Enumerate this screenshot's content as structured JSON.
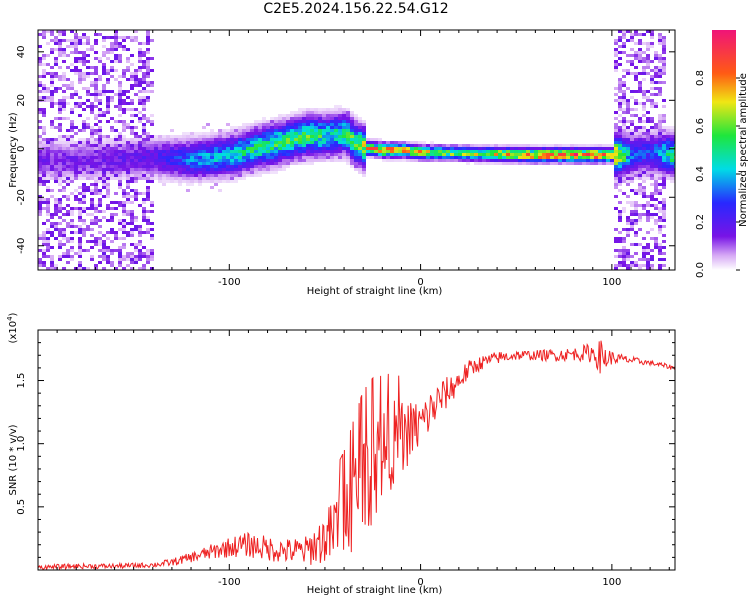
{
  "figure": {
    "title": "C2E5.2024.156.22.54.G12"
  },
  "chart_data": [
    {
      "type": "heatmap",
      "xlabel": "Height of straight line (km)",
      "ylabel": "Frequency (Hz)",
      "xlim": [
        -200,
        133
      ],
      "ylim": [
        -50,
        49
      ],
      "xticks": [
        -100,
        0,
        100
      ],
      "yticks": [
        -40,
        -20,
        0,
        20,
        40
      ],
      "colorbar": {
        "label": "Normalized spectral amplitude",
        "range": [
          0.0,
          1.0
        ],
        "ticks": [
          "0.0",
          "0.2",
          "0.4",
          "0.6",
          "0.8"
        ],
        "colormap": "rainbow (white-violet-blue-cyan-green-yellow-red-pink)"
      },
      "ridge": {
        "description": "dominant frequency ridge vs height",
        "x": [
          -200,
          -170,
          -140,
          -120,
          -100,
          -80,
          -70,
          -60,
          -50,
          -40,
          -35,
          -30,
          -20,
          -10,
          0,
          10,
          30,
          60,
          90,
          100,
          110,
          120,
          133
        ],
        "y": [
          -4,
          -4,
          -3,
          -4,
          -2,
          2,
          4,
          6,
          6,
          7,
          3,
          1,
          0,
          0,
          -1,
          -1,
          -1.5,
          -2,
          -2,
          -2,
          -2,
          -1,
          -2
        ],
        "amplitude": [
          0.15,
          0.15,
          0.2,
          0.35,
          0.45,
          0.55,
          0.55,
          0.55,
          0.5,
          0.5,
          0.6,
          0.7,
          0.85,
          0.75,
          0.7,
          0.6,
          0.65,
          0.85,
          0.9,
          0.85,
          0.3,
          0.3,
          0.6
        ]
      },
      "grid": false
    },
    {
      "type": "line",
      "xlabel": "Height of straight line (km)",
      "ylabel": "SNR (10 * v/v)",
      "scale_label": "(x10",
      "scale_exponent": "4",
      "xlim": [
        -200,
        133
      ],
      "ylim": [
        0,
        1.9
      ],
      "xticks": [
        -100,
        0,
        100
      ],
      "yticks": [
        "0.5",
        "1.0",
        "1.5"
      ],
      "ytick_values": [
        0.5,
        1.0,
        1.5
      ],
      "color": "#ee2222",
      "series": [
        {
          "x": [
            -200,
            -180,
            -160,
            -140,
            -130,
            -120,
            -110,
            -100,
            -90,
            -80,
            -70,
            -60,
            -50,
            -45,
            -40,
            -35,
            -30,
            -25,
            -20,
            -15,
            -10,
            -5,
            0,
            5,
            10,
            15,
            20,
            25,
            30,
            40,
            50,
            60,
            70,
            80,
            90,
            95,
            100,
            110,
            120,
            133
          ],
          "y": [
            0.02,
            0.03,
            0.03,
            0.04,
            0.06,
            0.1,
            0.14,
            0.18,
            0.2,
            0.17,
            0.15,
            0.15,
            0.25,
            0.3,
            0.38,
            0.55,
            0.7,
            0.8,
            0.9,
            1.0,
            1.05,
            1.1,
            1.15,
            1.25,
            1.35,
            1.42,
            1.5,
            1.58,
            1.63,
            1.68,
            1.7,
            1.7,
            1.7,
            1.71,
            1.72,
            1.68,
            1.68,
            1.66,
            1.64,
            1.6
          ],
          "noise": [
            0.02,
            0.02,
            0.02,
            0.02,
            0.03,
            0.04,
            0.06,
            0.08,
            0.1,
            0.1,
            0.1,
            0.12,
            0.2,
            0.3,
            0.35,
            0.4,
            0.45,
            0.45,
            0.4,
            0.35,
            0.3,
            0.25,
            0.2,
            0.18,
            0.15,
            0.12,
            0.1,
            0.08,
            0.06,
            0.05,
            0.04,
            0.04,
            0.05,
            0.05,
            0.08,
            0.15,
            0.05,
            0.03,
            0.02,
            0.02
          ]
        }
      ],
      "grid": false
    }
  ]
}
